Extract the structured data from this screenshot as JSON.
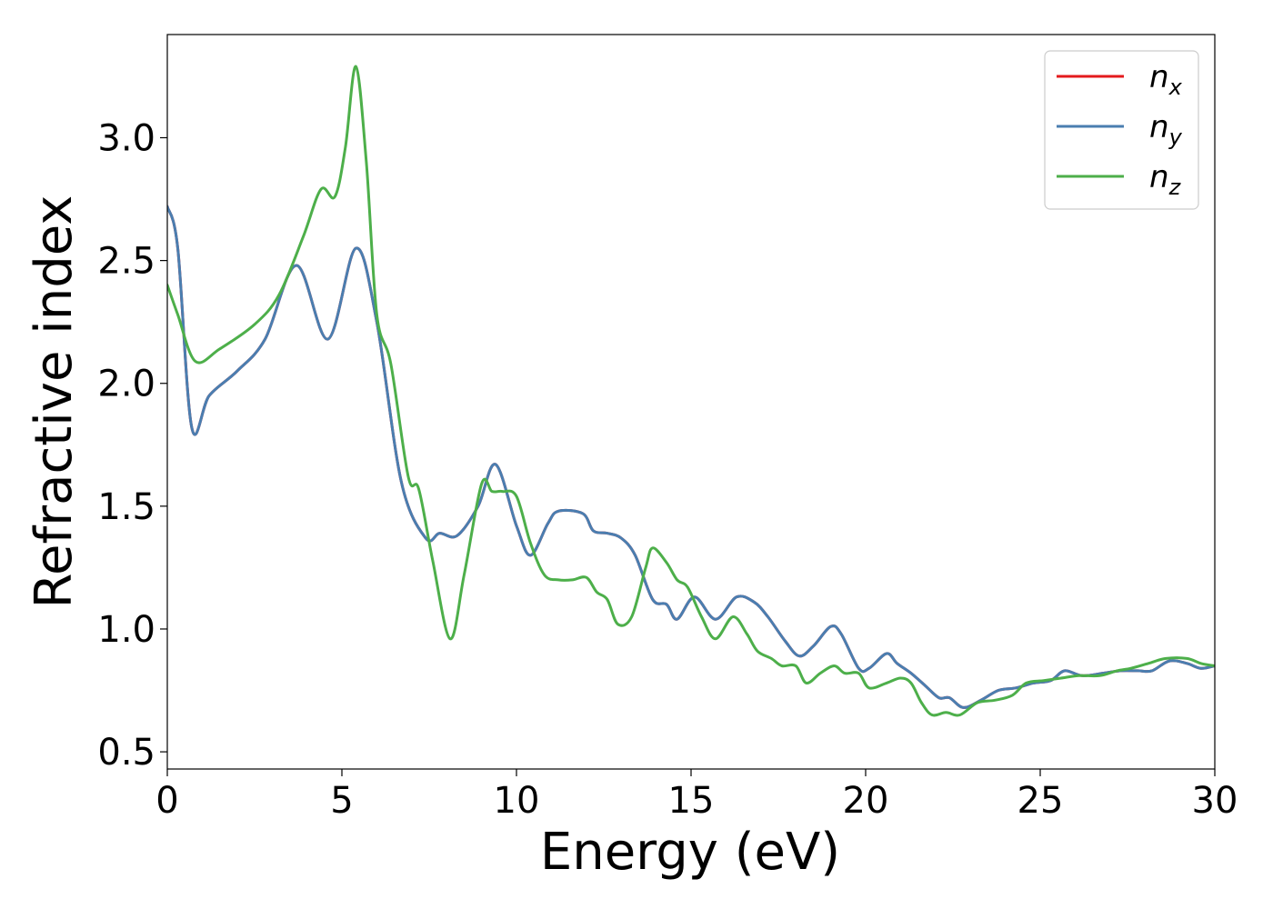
{
  "chart_data": {
    "type": "line",
    "title": "",
    "xlabel": "Energy (eV)",
    "ylabel": "Refractive index",
    "xlim": [
      0,
      30
    ],
    "ylim": [
      0.43,
      3.42
    ],
    "xticks": [
      0,
      5,
      10,
      15,
      20,
      25,
      30
    ],
    "xtick_labels": [
      "0",
      "5",
      "10",
      "15",
      "20",
      "25",
      "30"
    ],
    "yticks": [
      0.5,
      1.0,
      1.5,
      2.0,
      2.5,
      3.0
    ],
    "ytick_labels": [
      "0.5",
      "1.0",
      "1.5",
      "2.0",
      "2.5",
      "3.0"
    ],
    "grid": false,
    "legend_position": "top-right",
    "series": [
      {
        "name": "n_x",
        "legend_base": "n",
        "legend_sub": "x",
        "color": "#e41a1c",
        "points": [
          [
            0,
            2.72
          ],
          [
            0.3,
            2.55
          ],
          [
            0.7,
            1.82
          ],
          [
            1.2,
            1.95
          ],
          [
            2,
            2.05
          ],
          [
            2.8,
            2.18
          ],
          [
            3.7,
            2.48
          ],
          [
            4.6,
            2.18
          ],
          [
            5.4,
            2.55
          ],
          [
            6,
            2.25
          ],
          [
            6.7,
            1.6
          ],
          [
            7.4,
            1.37
          ],
          [
            7.8,
            1.39
          ],
          [
            8.3,
            1.38
          ],
          [
            8.9,
            1.5
          ],
          [
            9.4,
            1.67
          ],
          [
            10,
            1.42
          ],
          [
            10.4,
            1.3
          ],
          [
            10.9,
            1.43
          ],
          [
            11.2,
            1.48
          ],
          [
            11.9,
            1.47
          ],
          [
            12.2,
            1.4
          ],
          [
            12.6,
            1.39
          ],
          [
            13,
            1.37
          ],
          [
            13.4,
            1.3
          ],
          [
            13.9,
            1.12
          ],
          [
            14.3,
            1.1
          ],
          [
            14.6,
            1.04
          ],
          [
            15.1,
            1.13
          ],
          [
            15.7,
            1.04
          ],
          [
            16.3,
            1.13
          ],
          [
            16.8,
            1.11
          ],
          [
            17.2,
            1.05
          ],
          [
            17.7,
            0.95
          ],
          [
            18.1,
            0.89
          ],
          [
            18.5,
            0.93
          ],
          [
            19,
            1.01
          ],
          [
            19.3,
            0.98
          ],
          [
            19.8,
            0.84
          ],
          [
            20.1,
            0.84
          ],
          [
            20.6,
            0.9
          ],
          [
            20.9,
            0.86
          ],
          [
            21.3,
            0.82
          ],
          [
            21.7,
            0.77
          ],
          [
            22.1,
            0.72
          ],
          [
            22.4,
            0.72
          ],
          [
            22.8,
            0.68
          ],
          [
            23.3,
            0.71
          ],
          [
            23.8,
            0.75
          ],
          [
            24.3,
            0.76
          ],
          [
            24.8,
            0.78
          ],
          [
            25.3,
            0.79
          ],
          [
            25.7,
            0.83
          ],
          [
            26.2,
            0.81
          ],
          [
            26.8,
            0.82
          ],
          [
            27.3,
            0.83
          ],
          [
            27.8,
            0.83
          ],
          [
            28.2,
            0.83
          ],
          [
            28.7,
            0.87
          ],
          [
            29.2,
            0.86
          ],
          [
            29.6,
            0.84
          ],
          [
            30,
            0.85
          ]
        ]
      },
      {
        "name": "n_y",
        "legend_base": "n",
        "legend_sub": "y",
        "color": "#4a7eb0",
        "points": [
          [
            0,
            2.72
          ],
          [
            0.3,
            2.55
          ],
          [
            0.7,
            1.82
          ],
          [
            1.2,
            1.95
          ],
          [
            2,
            2.05
          ],
          [
            2.8,
            2.18
          ],
          [
            3.7,
            2.48
          ],
          [
            4.6,
            2.18
          ],
          [
            5.4,
            2.55
          ],
          [
            6,
            2.25
          ],
          [
            6.7,
            1.6
          ],
          [
            7.4,
            1.37
          ],
          [
            7.8,
            1.39
          ],
          [
            8.3,
            1.38
          ],
          [
            8.9,
            1.5
          ],
          [
            9.4,
            1.67
          ],
          [
            10,
            1.42
          ],
          [
            10.4,
            1.3
          ],
          [
            10.9,
            1.43
          ],
          [
            11.2,
            1.48
          ],
          [
            11.9,
            1.47
          ],
          [
            12.2,
            1.4
          ],
          [
            12.6,
            1.39
          ],
          [
            13,
            1.37
          ],
          [
            13.4,
            1.3
          ],
          [
            13.9,
            1.12
          ],
          [
            14.3,
            1.1
          ],
          [
            14.6,
            1.04
          ],
          [
            15.1,
            1.13
          ],
          [
            15.7,
            1.04
          ],
          [
            16.3,
            1.13
          ],
          [
            16.8,
            1.11
          ],
          [
            17.2,
            1.05
          ],
          [
            17.7,
            0.95
          ],
          [
            18.1,
            0.89
          ],
          [
            18.5,
            0.93
          ],
          [
            19,
            1.01
          ],
          [
            19.3,
            0.98
          ],
          [
            19.8,
            0.84
          ],
          [
            20.1,
            0.84
          ],
          [
            20.6,
            0.9
          ],
          [
            20.9,
            0.86
          ],
          [
            21.3,
            0.82
          ],
          [
            21.7,
            0.77
          ],
          [
            22.1,
            0.72
          ],
          [
            22.4,
            0.72
          ],
          [
            22.8,
            0.68
          ],
          [
            23.3,
            0.71
          ],
          [
            23.8,
            0.75
          ],
          [
            24.3,
            0.76
          ],
          [
            24.8,
            0.78
          ],
          [
            25.3,
            0.79
          ],
          [
            25.7,
            0.83
          ],
          [
            26.2,
            0.81
          ],
          [
            26.8,
            0.82
          ],
          [
            27.3,
            0.83
          ],
          [
            27.8,
            0.83
          ],
          [
            28.2,
            0.83
          ],
          [
            28.7,
            0.87
          ],
          [
            29.2,
            0.86
          ],
          [
            29.6,
            0.84
          ],
          [
            30,
            0.85
          ]
        ]
      },
      {
        "name": "n_z",
        "legend_base": "n",
        "legend_sub": "z",
        "color": "#4daf4a",
        "points": [
          [
            0,
            2.4
          ],
          [
            0.3,
            2.28
          ],
          [
            0.8,
            2.09
          ],
          [
            1.5,
            2.14
          ],
          [
            2.5,
            2.24
          ],
          [
            3.2,
            2.36
          ],
          [
            3.9,
            2.6
          ],
          [
            4.4,
            2.79
          ],
          [
            4.8,
            2.76
          ],
          [
            5.1,
            2.96
          ],
          [
            5.4,
            3.29
          ],
          [
            5.7,
            2.9
          ],
          [
            6,
            2.28
          ],
          [
            6.4,
            2.08
          ],
          [
            6.9,
            1.62
          ],
          [
            7.2,
            1.57
          ],
          [
            7.6,
            1.28
          ],
          [
            8.1,
            0.96
          ],
          [
            8.5,
            1.22
          ],
          [
            9,
            1.59
          ],
          [
            9.3,
            1.56
          ],
          [
            9.6,
            1.56
          ],
          [
            10,
            1.54
          ],
          [
            10.4,
            1.35
          ],
          [
            10.8,
            1.22
          ],
          [
            11.2,
            1.2
          ],
          [
            11.6,
            1.2
          ],
          [
            12,
            1.21
          ],
          [
            12.3,
            1.15
          ],
          [
            12.6,
            1.12
          ],
          [
            12.9,
            1.02
          ],
          [
            13.3,
            1.05
          ],
          [
            13.7,
            1.25
          ],
          [
            13.9,
            1.33
          ],
          [
            14.3,
            1.27
          ],
          [
            14.6,
            1.2
          ],
          [
            14.9,
            1.17
          ],
          [
            15.3,
            1.05
          ],
          [
            15.7,
            0.96
          ],
          [
            16.2,
            1.05
          ],
          [
            16.6,
            0.98
          ],
          [
            16.9,
            0.91
          ],
          [
            17.3,
            0.88
          ],
          [
            17.6,
            0.85
          ],
          [
            18,
            0.85
          ],
          [
            18.3,
            0.78
          ],
          [
            18.7,
            0.82
          ],
          [
            19.1,
            0.85
          ],
          [
            19.4,
            0.82
          ],
          [
            19.8,
            0.82
          ],
          [
            20.1,
            0.76
          ],
          [
            20.6,
            0.78
          ],
          [
            21,
            0.8
          ],
          [
            21.3,
            0.78
          ],
          [
            21.6,
            0.7
          ],
          [
            21.9,
            0.65
          ],
          [
            22.3,
            0.66
          ],
          [
            22.7,
            0.65
          ],
          [
            23.2,
            0.7
          ],
          [
            23.7,
            0.71
          ],
          [
            24.2,
            0.73
          ],
          [
            24.6,
            0.78
          ],
          [
            25.1,
            0.79
          ],
          [
            25.6,
            0.8
          ],
          [
            26.1,
            0.81
          ],
          [
            26.7,
            0.81
          ],
          [
            27.2,
            0.83
          ],
          [
            27.6,
            0.84
          ],
          [
            28.1,
            0.86
          ],
          [
            28.6,
            0.88
          ],
          [
            29.2,
            0.88
          ],
          [
            29.6,
            0.86
          ],
          [
            30,
            0.85
          ]
        ]
      }
    ]
  }
}
